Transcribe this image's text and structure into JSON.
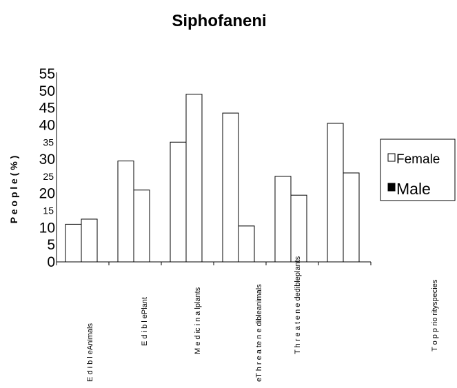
{
  "chart_data": {
    "type": "bar",
    "title": "Siphofaneni",
    "ylabel": "P e o p l e  ( % )",
    "xlabel": "",
    "ylim": [
      0,
      55
    ],
    "y_ticks": [
      {
        "label": "55",
        "value": 55
      },
      {
        "label": "50",
        "value": 50
      },
      {
        "label": "45",
        "value": 45
      },
      {
        "label": "40",
        "value": 40
      },
      {
        "label": "35",
        "value": 35
      },
      {
        "label": "30",
        "value": 30
      },
      {
        "label": "25",
        "value": 25
      },
      {
        "label": "20",
        "value": 20
      },
      {
        "label": "15",
        "value": 15
      },
      {
        "label": "10",
        "value": 10
      },
      {
        "label": "5",
        "value": 5
      },
      {
        "label": "0",
        "value": 0
      }
    ],
    "categories": [
      "E d i b l eAnimals",
      "E d i b l ePlant",
      "M e d ic i n a lplants",
      "eT h r e a te n e dibleanimals",
      "T h r e a t e n e dedibleplants",
      "T o p p rio rityspecies"
    ],
    "series": [
      {
        "name": "Female",
        "values": [
          11,
          29.5,
          35,
          43.5,
          25,
          40.5
        ],
        "fill": "#ffffff"
      },
      {
        "name": "Male",
        "values": [
          12.5,
          21,
          49,
          10.5,
          19.5,
          26
        ],
        "fill": "#ffffff"
      }
    ],
    "legend_position": "right",
    "grid": false
  }
}
